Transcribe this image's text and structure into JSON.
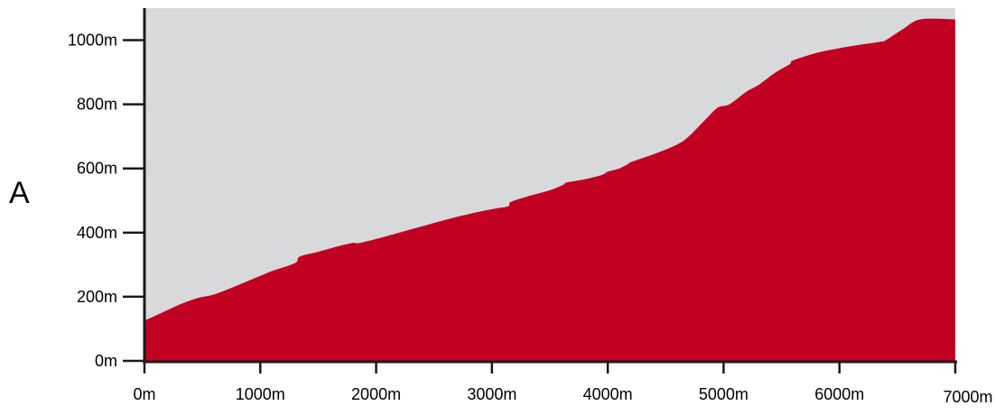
{
  "panel_label": "A",
  "colors": {
    "background_area": "#d8d9db",
    "fill_area": "#c20022",
    "axis": "#1a1a1a"
  },
  "chart_data": {
    "type": "area",
    "x_unit": "m",
    "y_unit": "m",
    "xlim": [
      0,
      7000
    ],
    "ylim": [
      0,
      1100
    ],
    "x_ticks": [
      0,
      1000,
      2000,
      3000,
      4000,
      5000,
      6000,
      7000
    ],
    "y_ticks": [
      0,
      200,
      400,
      600,
      800,
      1000
    ],
    "x_tick_labels": [
      "0m",
      "1000m",
      "2000m",
      "3000m",
      "4000m",
      "5000m",
      "6000m",
      "7000m"
    ],
    "y_tick_labels": [
      "0m",
      "200m",
      "400m",
      "600m",
      "800m",
      "1000m"
    ],
    "grid": false,
    "series": [
      {
        "x": [
          0,
          150,
          300,
          450,
          600,
          800,
          1000,
          1100,
          1300,
          1340,
          1500,
          1700,
          1800,
          1850,
          2000,
          2200,
          2400,
          2600,
          2800,
          3000,
          3140,
          3160,
          3300,
          3500,
          3620,
          3640,
          3800,
          3950,
          4000,
          4100,
          4180,
          4200,
          4400,
          4600,
          4700,
          4850,
          4950,
          5050,
          5200,
          5300,
          5450,
          5570,
          5600,
          5800,
          6000,
          6200,
          6350,
          6400,
          6550,
          6700,
          7000
        ],
        "y": [
          125,
          150,
          175,
          195,
          207,
          235,
          265,
          280,
          305,
          325,
          340,
          360,
          368,
          367,
          380,
          400,
          420,
          440,
          458,
          473,
          482,
          495,
          512,
          532,
          550,
          556,
          566,
          580,
          590,
          600,
          615,
          620,
          645,
          675,
          700,
          755,
          790,
          800,
          840,
          860,
          900,
          925,
          937,
          960,
          975,
          987,
          995,
          1000,
          1035,
          1065,
          1065
        ]
      }
    ]
  }
}
